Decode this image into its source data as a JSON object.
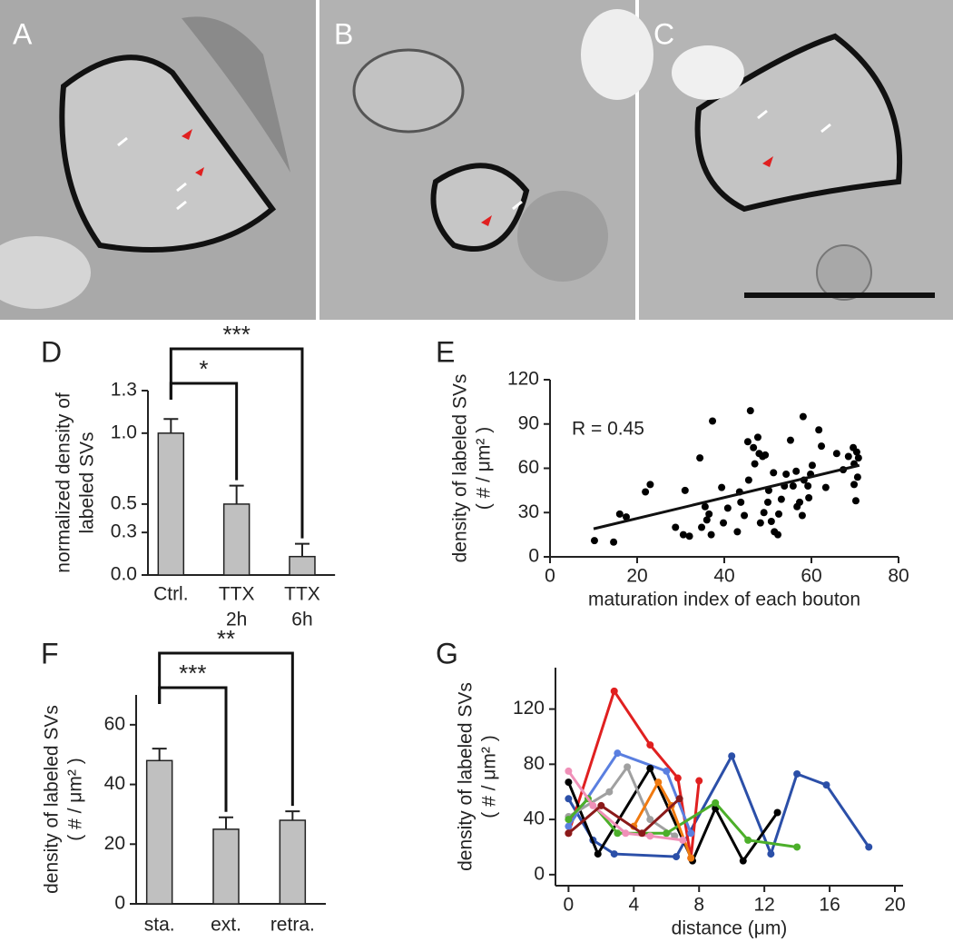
{
  "panel_labels": [
    "A",
    "B",
    "C"
  ],
  "chart_data": [
    {
      "type": "bar",
      "panel": "D",
      "ylabel": [
        "normalized density of",
        "labeled SVs"
      ],
      "categories": [
        [
          "Ctrl."
        ],
        [
          "TTX",
          "2h"
        ],
        [
          "TTX",
          "6h"
        ]
      ],
      "values": [
        1.0,
        0.5,
        0.13
      ],
      "errors": [
        0.1,
        0.13,
        0.09
      ],
      "color": "#c0c0c0",
      "ylim": [
        0,
        1.3
      ],
      "yticks": [
        {
          "value": 0,
          "label": "0.0"
        },
        0.3,
        0.5,
        {
          "value": 1,
          "label": "1.0"
        },
        1.3
      ],
      "annotations": [
        {
          "text": "*",
          "between": [
            0,
            1
          ]
        },
        {
          "text": "***",
          "between": [
            0,
            2
          ]
        }
      ]
    },
    {
      "type": "scatter",
      "panel": "E",
      "ylabel": [
        "density of labeled SVs",
        "( # / μm² )"
      ],
      "xlabel": "maturation index of each bouton",
      "annotation": "R = 0.45",
      "color": "#000000",
      "x": [
        10.2,
        14.6,
        16,
        17.5,
        21.9,
        23,
        28.8,
        31,
        30.6,
        32,
        34.4,
        34.8,
        36,
        36.5,
        35.6,
        37,
        37.3,
        39.4,
        39.8,
        40.8,
        43,
        43.5,
        43.8,
        44.6,
        45.6,
        45.4,
        46,
        46.7,
        47,
        47.7,
        48,
        48.8,
        49.4,
        48.3,
        49.1,
        50,
        50.2,
        50.8,
        51.3,
        51.5,
        52.3,
        52.5,
        53.1,
        53.8,
        54.2,
        55.2,
        55.8,
        56.5,
        56.7,
        57.3,
        57.9,
        58.1,
        58.3,
        59.2,
        59.4,
        59.8,
        60.2,
        61.7,
        62.3,
        63.3,
        65.8,
        67.3,
        68.5,
        69.6,
        69.8,
        69.8,
        70.2,
        70.6,
        70.8,
        70.4
      ],
      "values": [
        11,
        10,
        29,
        27,
        44,
        49,
        20,
        45,
        15,
        14,
        67,
        20,
        25,
        29,
        34,
        15,
        92,
        47,
        23,
        33,
        17,
        44,
        37,
        28,
        52,
        78,
        99,
        74,
        63,
        81,
        70,
        68,
        69,
        23,
        30,
        37,
        45,
        24,
        57,
        17,
        15,
        29,
        39,
        48,
        56,
        79,
        48,
        58,
        34,
        37,
        28,
        95,
        52,
        48,
        40,
        56,
        62,
        86,
        75,
        47,
        70,
        59,
        68,
        74,
        63,
        49,
        38,
        54,
        67,
        71
      ],
      "fit_line": {
        "x": [
          10,
          71
        ],
        "y": [
          19,
          62
        ]
      },
      "xlim": [
        0,
        80
      ],
      "xticks": [
        0,
        20,
        40,
        60,
        80
      ],
      "ylim": [
        0,
        120
      ],
      "yticks": [
        0,
        30,
        60,
        90,
        120
      ]
    },
    {
      "type": "bar",
      "panel": "F",
      "ylabel": [
        "density of labeled SVs",
        "( # / μm² )"
      ],
      "categories": [
        "sta.",
        "ext.",
        "retra."
      ],
      "values": [
        48,
        25,
        28
      ],
      "errors": [
        4,
        4,
        3
      ],
      "color": "#c0c0c0",
      "ylim": [
        0,
        70
      ],
      "yticks": [
        0,
        20,
        40,
        60
      ],
      "annotations": [
        {
          "text": "***",
          "between": [
            0,
            1
          ]
        },
        {
          "text": "**",
          "between": [
            0,
            2
          ]
        }
      ]
    },
    {
      "type": "line",
      "panel": "G",
      "ylabel": [
        "density of labeled SVs",
        "( # / μm² )"
      ],
      "xlabel": "distance  (μm)",
      "series": [
        {
          "color": "#2b4fa8",
          "x": [
            0,
            1.5,
            2.8,
            6.6,
            10,
            12.4,
            14,
            15.8,
            18.4
          ],
          "values": [
            55,
            25,
            15,
            13,
            86,
            15,
            73,
            65,
            20
          ]
        },
        {
          "color": "#e02020",
          "x": [
            0,
            2.8,
            5,
            6.7,
            7.5,
            8
          ],
          "values": [
            30,
            133,
            94,
            70,
            12,
            68
          ]
        },
        {
          "color": "#5a7fe0",
          "x": [
            0,
            3,
            6,
            7.5
          ],
          "values": [
            35,
            88,
            75,
            30
          ]
        },
        {
          "color": "#000000",
          "x": [
            0,
            1.8,
            5,
            7.6,
            9,
            10.7,
            12.8
          ],
          "values": [
            67,
            15,
            77,
            10,
            48,
            10,
            45
          ]
        },
        {
          "color": "#a0a0a0",
          "x": [
            0,
            2.5,
            3.6,
            5,
            6.5
          ],
          "values": [
            42,
            60,
            78,
            40,
            28
          ]
        },
        {
          "color": "#4caf2a",
          "x": [
            0,
            1.2,
            3,
            6,
            9,
            11,
            14
          ],
          "values": [
            40,
            55,
            30,
            30,
            52,
            25,
            20
          ]
        },
        {
          "color": "#f07a10",
          "x": [
            4,
            5.5,
            6.3,
            7.5
          ],
          "values": [
            35,
            67,
            50,
            12
          ]
        },
        {
          "color": "#f090b8",
          "x": [
            0,
            1.5,
            3.5,
            5,
            7
          ],
          "values": [
            75,
            50,
            30,
            28,
            25
          ]
        },
        {
          "color": "#8b1a1a",
          "x": [
            0,
            2,
            4.5,
            6.8
          ],
          "values": [
            30,
            50,
            30,
            55
          ]
        }
      ],
      "xlim": [
        -0.8,
        20.5
      ],
      "xticks": [
        0,
        4,
        8,
        12,
        16,
        20
      ],
      "ylim": [
        -8,
        150
      ],
      "yticks": [
        0,
        40,
        80,
        120
      ]
    }
  ]
}
